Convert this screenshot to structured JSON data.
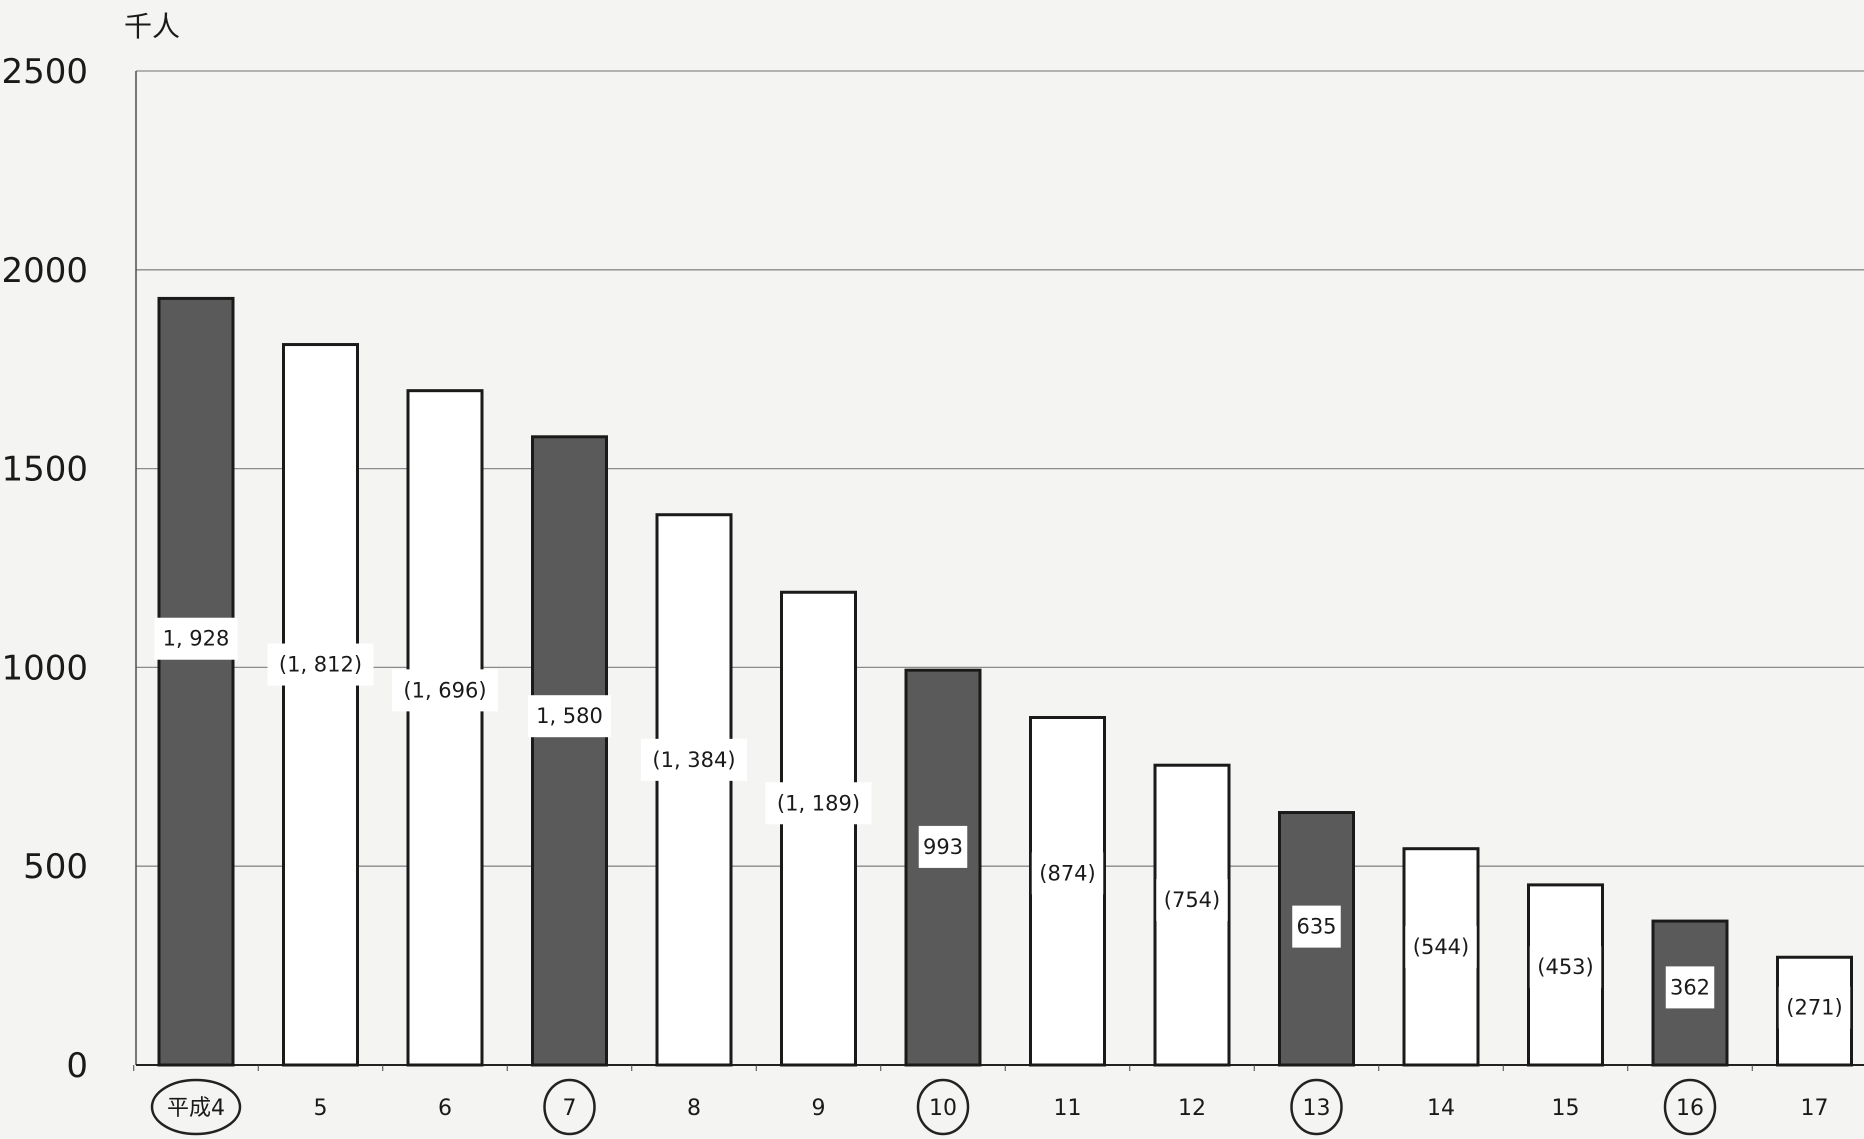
{
  "chart_data": {
    "type": "bar",
    "title": "",
    "ylabel": "千人",
    "xlabel": "",
    "ylim": [
      0,
      2500
    ],
    "yticks": [
      0,
      500,
      1000,
      1500,
      2000,
      2500
    ],
    "grid": true,
    "categories": [
      "平成4",
      "5",
      "6",
      "7",
      "8",
      "9",
      "10",
      "11",
      "12",
      "13",
      "14",
      "15",
      "16",
      "17"
    ],
    "values": [
      1928,
      1812,
      1696,
      1580,
      1384,
      1189,
      993,
      874,
      754,
      635,
      544,
      453,
      362,
      271
    ],
    "data_labels": [
      "1, 928",
      "(1, 812)",
      "(1, 696)",
      "1, 580",
      "(1, 384)",
      "(1, 189)",
      "993",
      "(874)",
      "(754)",
      "635",
      "(544)",
      "(453)",
      "362",
      "(271)"
    ],
    "highlighted": [
      true,
      false,
      false,
      true,
      false,
      false,
      true,
      false,
      false,
      true,
      false,
      false,
      true,
      false
    ],
    "colors": {
      "highlight_fill": "#5a5a5a",
      "normal_fill": "#ffffff",
      "bar_stroke": "#1a1a1a",
      "grid": "#8a8a8a",
      "label_box": "#ffffff",
      "text": "#1a1a1a"
    }
  }
}
